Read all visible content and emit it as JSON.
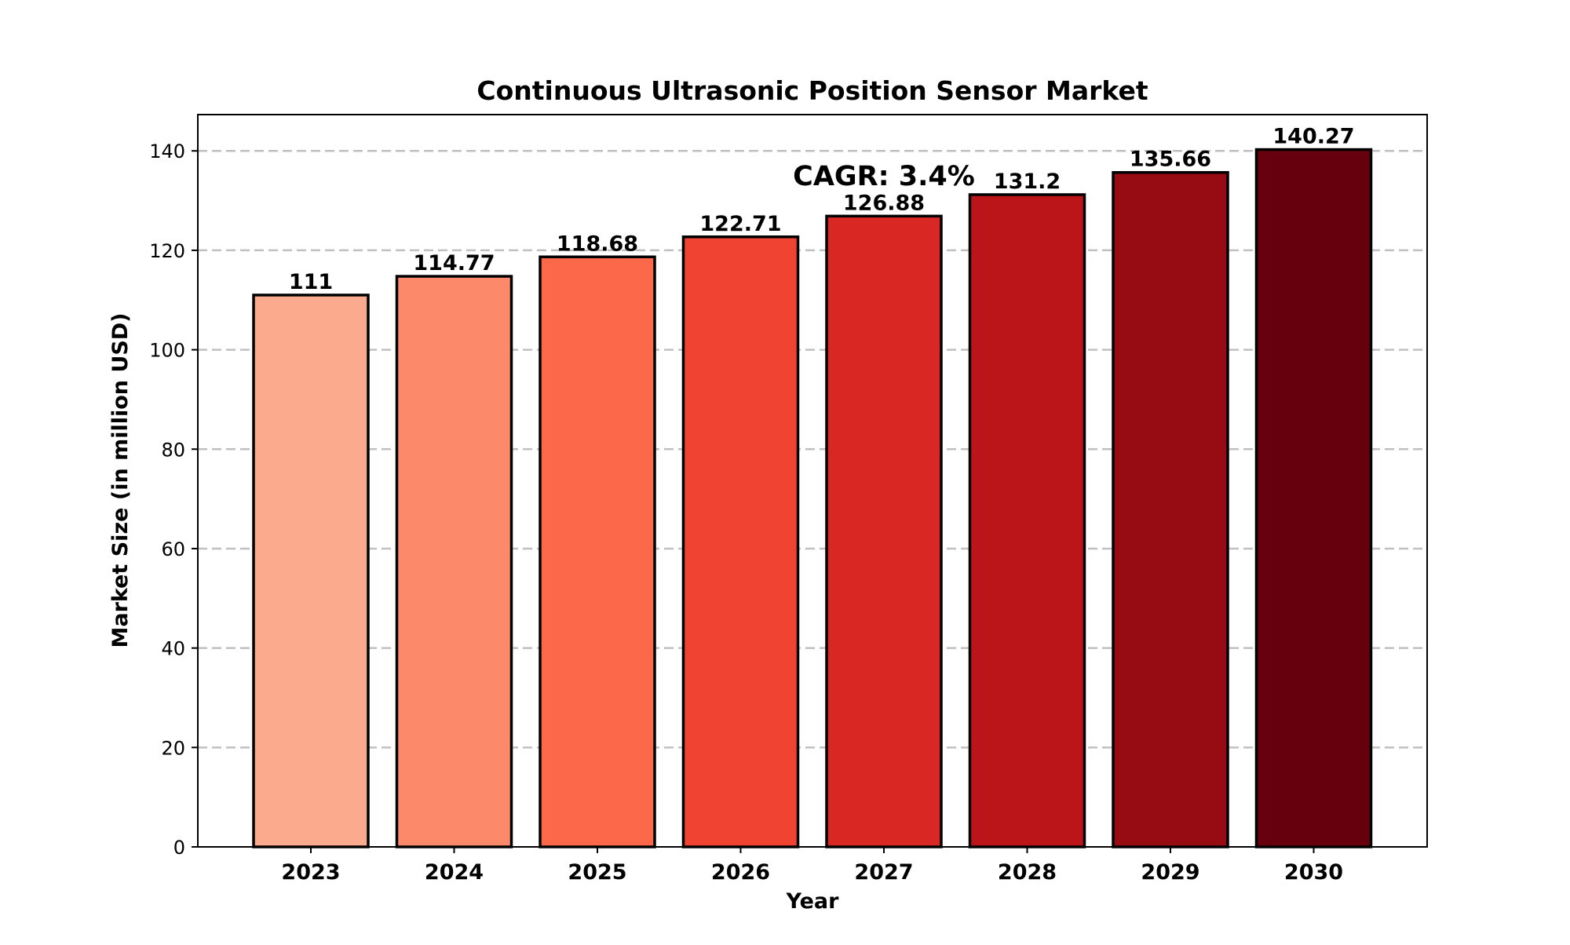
{
  "chart_data": {
    "type": "bar",
    "title": "Continuous Ultrasonic Position Sensor Market",
    "xlabel": "Year",
    "ylabel": "Market Size (in million USD)",
    "categories": [
      "2023",
      "2024",
      "2025",
      "2026",
      "2027",
      "2028",
      "2029",
      "2030"
    ],
    "values": [
      111,
      114.77,
      118.68,
      122.71,
      126.88,
      131.2,
      135.66,
      140.27
    ],
    "value_labels": [
      "111",
      "114.77",
      "118.68",
      "122.71",
      "126.88",
      "131.2",
      "135.66",
      "140.27"
    ],
    "bar_colors": [
      "#fcaa8d",
      "#fc8a6a",
      "#fb694a",
      "#f14331",
      "#d92723",
      "#bb151a",
      "#970c12",
      "#67000d"
    ],
    "bar_edge_color": "#000000",
    "ylim": [
      0,
      147.3
    ],
    "yticks": [
      0,
      20,
      40,
      60,
      80,
      100,
      120,
      140
    ],
    "ytick_labels": [
      "0",
      "20",
      "40",
      "60",
      "80",
      "100",
      "120",
      "140"
    ],
    "grid": "horizontal dashed",
    "grid_color": "#c0c0c0",
    "annotation": "CAGR: 3.4%",
    "annotation_anchor": {
      "x": "2027",
      "y": 135
    }
  }
}
